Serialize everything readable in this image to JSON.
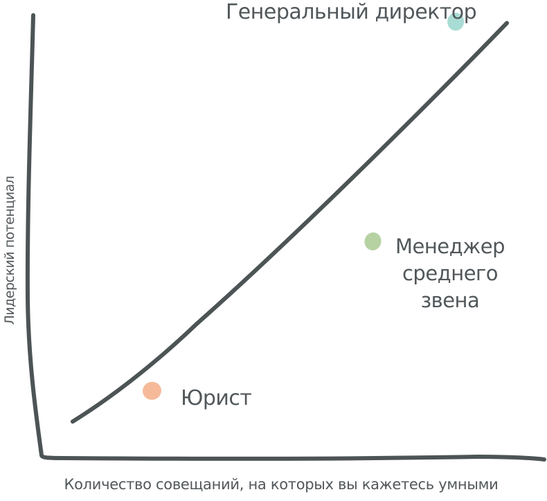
{
  "page": {
    "background": "#ffffff"
  },
  "chart_data": {
    "type": "scatter",
    "title": "",
    "xlabel": "Количество совещаний, на которых вы кажетесь умными",
    "ylabel": "Лидерский потенциал",
    "xlim": [
      0,
      100
    ],
    "ylim": [
      0,
      100
    ],
    "grid": false,
    "legend": false,
    "axes_style": "hand-drawn, no ticks, no numeric tick labels",
    "line_color": "#4d5455",
    "text_color": "#51575a",
    "points": [
      {
        "label": "Юрист",
        "x": 22,
        "y": 15,
        "color": "#f6ba9a"
      },
      {
        "label": "Менеджер среднего звена",
        "x": 66,
        "y": 49,
        "color": "#b6d2a3"
      },
      {
        "label": "Генеральный директор",
        "x": 82.5,
        "y": 99,
        "color": "#a9dcd4"
      }
    ],
    "trend_line": {
      "from": [
        6.2,
        8
      ],
      "to": [
        92.7,
        98.7
      ]
    }
  }
}
